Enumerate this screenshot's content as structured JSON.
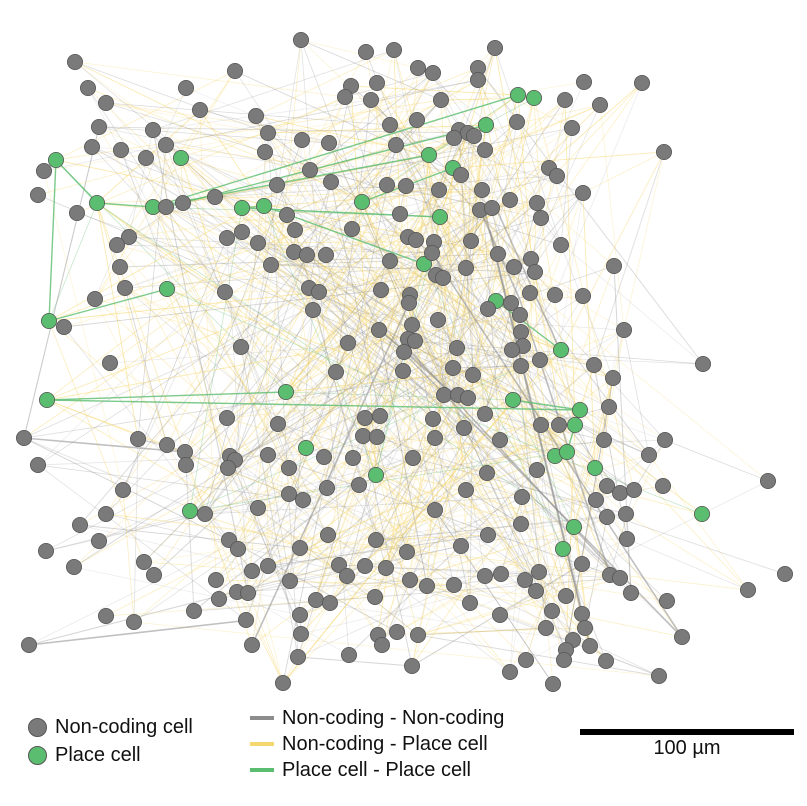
{
  "legend": {
    "nodes": [
      {
        "label": "Non-coding cell",
        "color": "#7a7a7a"
      },
      {
        "label": "Place cell",
        "color": "#5bbd6f"
      }
    ],
    "edges": [
      {
        "label": "Non-coding - Non-coding",
        "color": "#8c8c8c"
      },
      {
        "label": "Non-coding - Place cell",
        "color": "#f6d873"
      },
      {
        "label": "Place cell - Place cell",
        "color": "#5bbd6f"
      }
    ]
  },
  "scale_bar": {
    "label": "100 µm"
  },
  "colors": {
    "non_coding": "#7a7a7a",
    "place": "#5bbd6f",
    "node_edge": "#555555",
    "edge_nc_nc": "#8c8c8c",
    "edge_nc_pc": "#f6d873",
    "edge_pc_pc": "#5bbd6f"
  }
}
